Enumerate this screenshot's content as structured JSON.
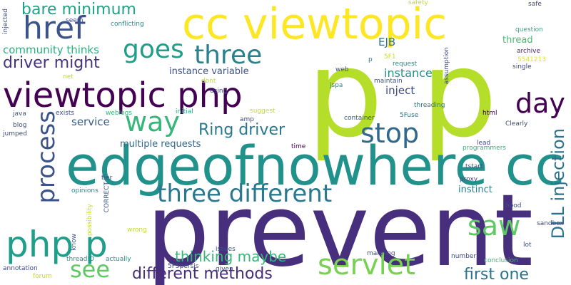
{
  "words": [
    {
      "text": "p p",
      "color": "#b5de2b",
      "vertical": false
    },
    {
      "text": "prevent",
      "color": "#472f7d",
      "vertical": false
    },
    {
      "text": "edgeofnowhere cc",
      "color": "#21918c",
      "vertical": false
    },
    {
      "text": "cc viewtopic",
      "color": "#fde725",
      "vertical": false
    },
    {
      "text": "viewtopic php",
      "color": "#440154",
      "vertical": false
    },
    {
      "text": "href",
      "color": "#3b528b",
      "vertical": false
    },
    {
      "text": "php p",
      "color": "#1f9e89",
      "vertical": false
    },
    {
      "text": "three different",
      "color": "#2a788e",
      "vertical": false
    },
    {
      "text": "stop",
      "color": "#31688e",
      "vertical": false
    },
    {
      "text": "servlet",
      "color": "#7ad151",
      "vertical": false
    },
    {
      "text": "way",
      "color": "#35b779",
      "vertical": false
    },
    {
      "text": "three",
      "color": "#26828e",
      "vertical": false
    },
    {
      "text": "goes",
      "color": "#1f9e89",
      "vertical": false
    },
    {
      "text": "day",
      "color": "#440154",
      "vertical": false
    },
    {
      "text": "saw",
      "color": "#5ec962",
      "vertical": false
    },
    {
      "text": "process",
      "color": "#3b528b",
      "vertical": true
    },
    {
      "text": "DLL injection",
      "color": "#2c728e",
      "vertical": true
    },
    {
      "text": "see",
      "color": "#5ec962",
      "vertical": false
    },
    {
      "text": "bare minimum",
      "color": "#20a386",
      "vertical": false
    },
    {
      "text": "different methods",
      "color": "#472d7b",
      "vertical": false
    },
    {
      "text": "Ring driver",
      "color": "#2a788e",
      "vertical": false
    },
    {
      "text": "driver might",
      "color": "#46337e",
      "vertical": false
    },
    {
      "text": "thinking maybe",
      "color": "#35b779",
      "vertical": false
    },
    {
      "text": "first one",
      "color": "#2c728e",
      "vertical": false
    },
    {
      "text": "community thinks",
      "color": "#2ab07f",
      "vertical": false
    },
    {
      "text": "instance",
      "color": "#21918c",
      "vertical": false
    },
    {
      "text": "inject",
      "color": "#3e4a89",
      "vertical": false
    },
    {
      "text": "EJB",
      "color": "#2c728e",
      "vertical": false
    },
    {
      "text": "service",
      "color": "#38598c",
      "vertical": false
    },
    {
      "text": "multiple requests",
      "color": "#31688e",
      "vertical": false
    },
    {
      "text": "instance variable",
      "color": "#3b528b",
      "vertical": false
    },
    {
      "text": "instinct",
      "color": "#26828e",
      "vertical": false
    },
    {
      "text": "thread",
      "color": "#44bf70",
      "vertical": false
    },
    {
      "text": "safety",
      "color": "#c2df23",
      "vertical": false
    },
    {
      "text": "safe",
      "color": "#404688",
      "vertical": false
    },
    {
      "text": "question",
      "color": "#2ab07f",
      "vertical": false
    },
    {
      "text": "archive",
      "color": "#481f70",
      "vertical": false
    },
    {
      "text": "5541213",
      "color": "#e5e419",
      "vertical": false
    },
    {
      "text": "single",
      "color": "#3e4a89",
      "vertical": false
    },
    {
      "text": "assumption",
      "color": "#3e4a89",
      "vertical": true
    },
    {
      "text": "maintain",
      "color": "#3b528b",
      "vertical": false
    },
    {
      "text": "request",
      "color": "#21918c",
      "vertical": false
    },
    {
      "text": "5F1",
      "color": "#c2df23",
      "vertical": false
    },
    {
      "text": "web",
      "color": "#3e4a89",
      "vertical": false
    },
    {
      "text": "p",
      "color": "#2c728e",
      "vertical": false
    },
    {
      "text": "jspa",
      "color": "#21918c",
      "vertical": false
    },
    {
      "text": "threading",
      "color": "#2c728e",
      "vertical": false
    },
    {
      "text": "html",
      "color": "#440154",
      "vertical": false
    },
    {
      "text": "5Fuse",
      "color": "#2c728e",
      "vertical": false
    },
    {
      "text": "Clearly",
      "color": "#3e4a89",
      "vertical": false
    },
    {
      "text": "container",
      "color": "#3b528b",
      "vertical": false
    },
    {
      "text": "lead",
      "color": "#3e4a89",
      "vertical": false
    },
    {
      "text": "programmers",
      "color": "#35b779",
      "vertical": false
    },
    {
      "text": "tstart",
      "color": "#3b528b",
      "vertical": false
    },
    {
      "text": "time",
      "color": "#440154",
      "vertical": false
    },
    {
      "text": "proxy",
      "color": "#3e4a89",
      "vertical": false
    },
    {
      "text": "hood",
      "color": "#3e4a89",
      "vertical": false
    },
    {
      "text": "sandbox",
      "color": "#414487",
      "vertical": false
    },
    {
      "text": "lot",
      "color": "#3e4a89",
      "vertical": false
    },
    {
      "text": "conclusion",
      "color": "#35b779",
      "vertical": false
    },
    {
      "text": "number",
      "color": "#3e4a89",
      "vertical": false
    },
    {
      "text": "manning",
      "color": "#3e4a89",
      "vertical": false
    },
    {
      "text": "given",
      "color": "#3e4a89",
      "vertical": false
    },
    {
      "text": "5F5persis",
      "color": "#3e4a89",
      "vertical": false
    },
    {
      "text": "issues",
      "color": "#3b528b",
      "vertical": false
    },
    {
      "text": "actually",
      "color": "#21918c",
      "vertical": false
    },
    {
      "text": "threadID",
      "color": "#21918c",
      "vertical": false
    },
    {
      "text": "know",
      "color": "#3b528b",
      "vertical": true
    },
    {
      "text": "possibility",
      "color": "#c2df23",
      "vertical": true
    },
    {
      "text": "CORRECT",
      "color": "#3b528b",
      "vertical": true
    },
    {
      "text": "tier",
      "color": "#3e4a89",
      "vertical": false
    },
    {
      "text": "opinions",
      "color": "#21918c",
      "vertical": false
    },
    {
      "text": "wrong",
      "color": "#c2df23",
      "vertical": false
    },
    {
      "text": "forum",
      "color": "#c2df23",
      "vertical": false
    },
    {
      "text": "annotation",
      "color": "#3e4a89",
      "vertical": false
    },
    {
      "text": "jumped",
      "color": "#3e4a89",
      "vertical": false
    },
    {
      "text": "blog",
      "color": "#3e4a89",
      "vertical": false
    },
    {
      "text": "java",
      "color": "#3b528b",
      "vertical": false
    },
    {
      "text": "exists",
      "color": "#3b528b",
      "vertical": false
    },
    {
      "text": "weblogs",
      "color": "#35b779",
      "vertical": false
    },
    {
      "text": "initial",
      "color": "#2ab07f",
      "vertical": false
    },
    {
      "text": "suggest",
      "color": "#c2df23",
      "vertical": false
    },
    {
      "text": "amp",
      "color": "#3e4a89",
      "vertical": false
    },
    {
      "text": "using",
      "color": "#3e4a89",
      "vertical": false
    },
    {
      "text": "dont",
      "color": "#c2df23",
      "vertical": false
    },
    {
      "text": "net",
      "color": "#c2df23",
      "vertical": false
    },
    {
      "text": "injected",
      "color": "#3e4a89",
      "vertical": true
    },
    {
      "text": "seem",
      "color": "#3e4a89",
      "vertical": false
    },
    {
      "text": "conflicting",
      "color": "#21918c",
      "vertical": false
    }
  ]
}
